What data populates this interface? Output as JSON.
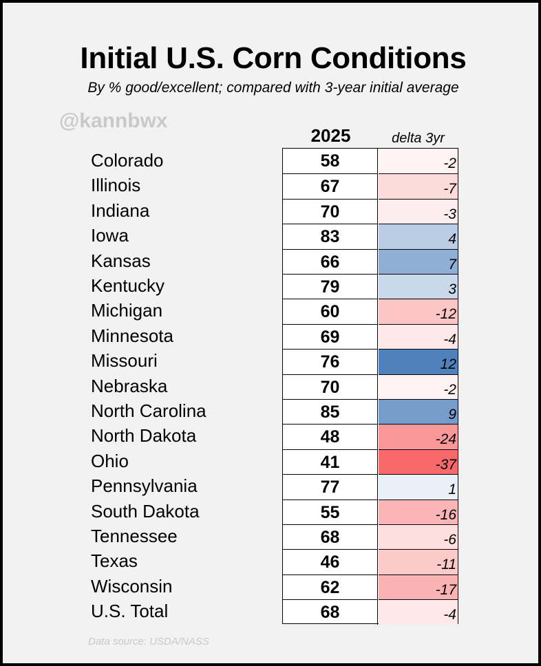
{
  "title": "Initial U.S. Corn Conditions",
  "subtitle": "By % good/excellent; compared with 3-year initial average",
  "handle": "@kannbwx",
  "source": "Data source: USDA/NASS",
  "colors": {
    "positive": "#4f81bd",
    "negative": "#f8696b",
    "neutral": "#fcfcff"
  },
  "chart_data": {
    "type": "table",
    "columns": [
      "2025",
      "delta 3yr"
    ],
    "rows": [
      {
        "state": "Colorado",
        "value": "58",
        "delta": "-2"
      },
      {
        "state": "Illinois",
        "value": "67",
        "delta": "-7"
      },
      {
        "state": "Indiana",
        "value": "70",
        "delta": "-3"
      },
      {
        "state": "Iowa",
        "value": "83",
        "delta": "4"
      },
      {
        "state": "Kansas",
        "value": "66",
        "delta": "7"
      },
      {
        "state": "Kentucky",
        "value": "79",
        "delta": "3"
      },
      {
        "state": "Michigan",
        "value": "60",
        "delta": "-12"
      },
      {
        "state": "Minnesota",
        "value": "69",
        "delta": "-4"
      },
      {
        "state": "Missouri",
        "value": "76",
        "delta": "12"
      },
      {
        "state": "Nebraska",
        "value": "70",
        "delta": "-2"
      },
      {
        "state": "North Carolina",
        "value": "85",
        "delta": "9"
      },
      {
        "state": "North Dakota",
        "value": "48",
        "delta": "-24"
      },
      {
        "state": "Ohio",
        "value": "41",
        "delta": "-37"
      },
      {
        "state": "Pennsylvania",
        "value": "77",
        "delta": "1"
      },
      {
        "state": "South Dakota",
        "value": "55",
        "delta": "-16"
      },
      {
        "state": "Tennessee",
        "value": "68",
        "delta": "-6"
      },
      {
        "state": "Texas",
        "value": "46",
        "delta": "-11"
      },
      {
        "state": "Wisconsin",
        "value": "62",
        "delta": "-17"
      },
      {
        "state": "U.S. Total",
        "value": "68",
        "delta": "-4"
      }
    ]
  }
}
